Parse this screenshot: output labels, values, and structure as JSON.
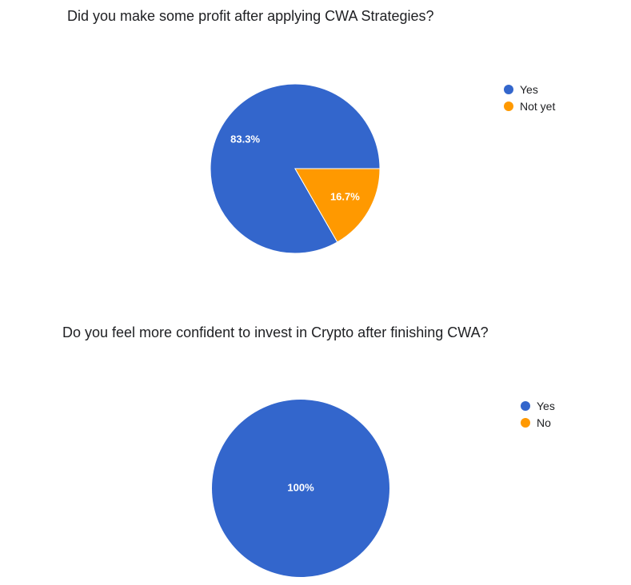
{
  "chart_data": [
    {
      "type": "pie",
      "title": "Did you make some profit after applying CWA Strategies?",
      "slices": [
        {
          "label": "Yes",
          "value": 83.3,
          "display": "83.3%",
          "color": "#3366cc"
        },
        {
          "label": "Not yet",
          "value": 16.7,
          "display": "16.7%",
          "color": "#ff9900"
        }
      ],
      "legend_position": "right"
    },
    {
      "type": "pie",
      "title": "Do you feel more confident to invest in Crypto after finishing CWA?",
      "slices": [
        {
          "label": "Yes",
          "value": 100,
          "display": "100%",
          "color": "#3366cc"
        },
        {
          "label": "No",
          "value": 0,
          "display": "",
          "color": "#ff9900"
        }
      ],
      "legend_position": "right"
    }
  ]
}
